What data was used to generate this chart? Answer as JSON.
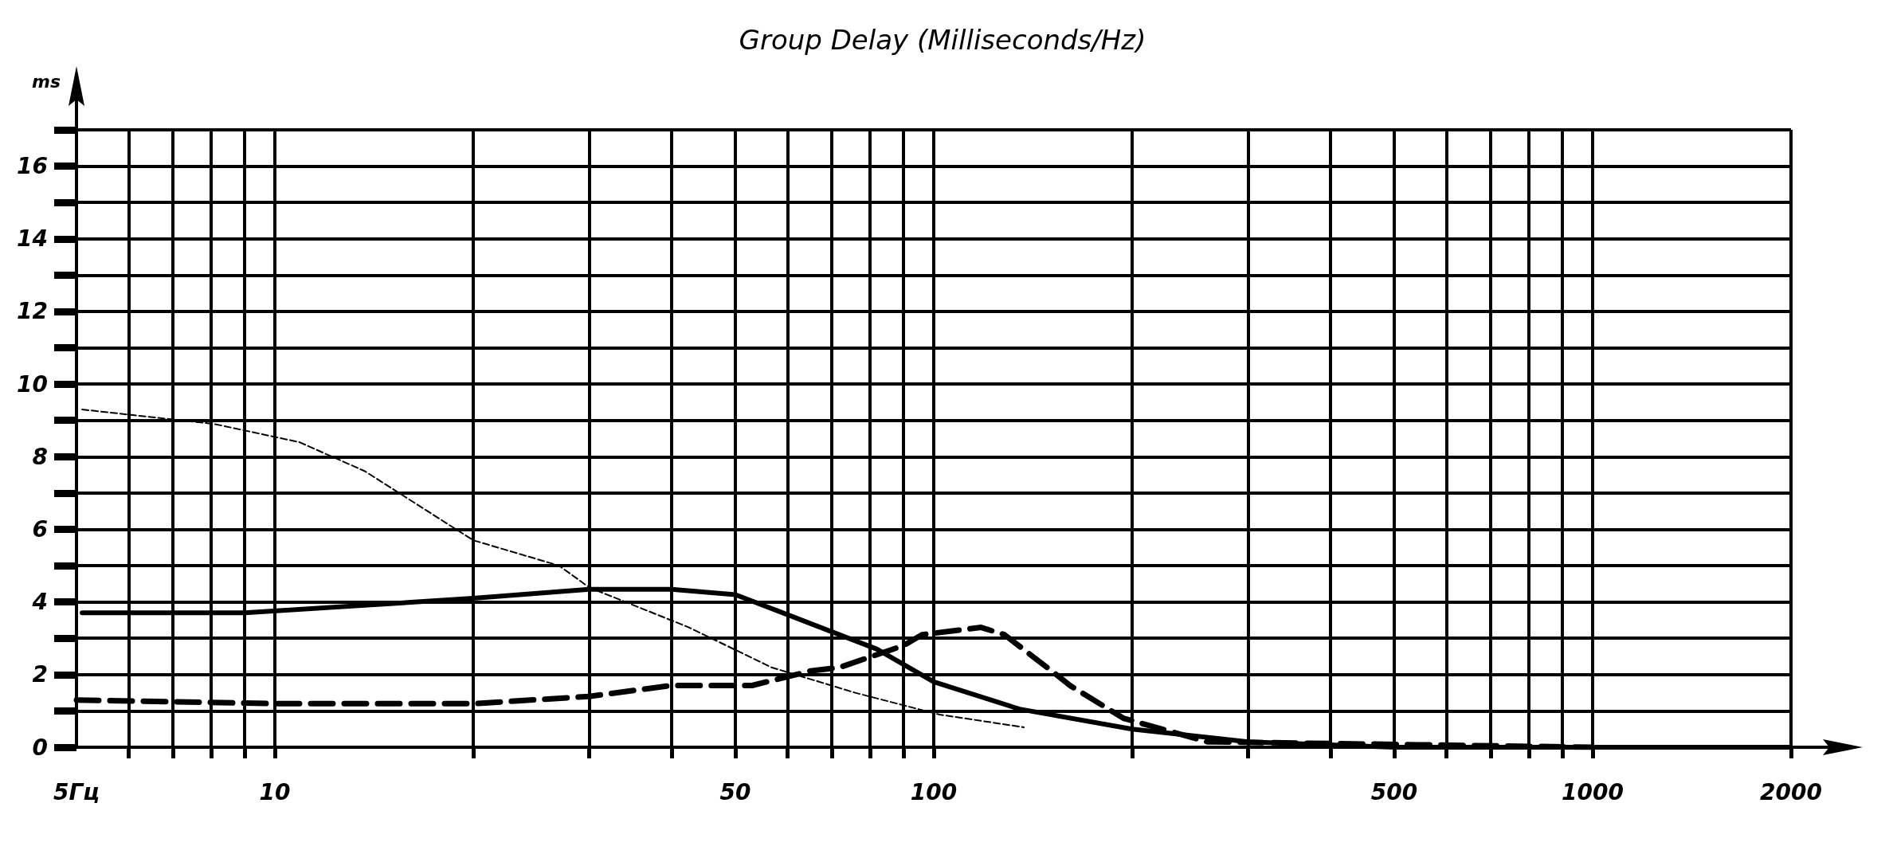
{
  "chart_data": {
    "type": "line",
    "title": "Group Delay (Milliseconds/Hz)",
    "ylabel": "ms",
    "log": "x",
    "xlim": [
      5,
      2000
    ],
    "ylim": [
      0,
      17
    ],
    "xticks": [
      {
        "value": 5,
        "label": "5Гц"
      },
      {
        "value": 6,
        "label": null
      },
      {
        "value": 7,
        "label": null
      },
      {
        "value": 8,
        "label": null
      },
      {
        "value": 9,
        "label": null
      },
      10,
      {
        "value": 20,
        "label": null
      },
      {
        "value": 30,
        "label": null
      },
      {
        "value": 40,
        "label": null
      },
      50,
      {
        "value": 60,
        "label": null
      },
      {
        "value": 70,
        "label": null
      },
      {
        "value": 80,
        "label": null
      },
      {
        "value": 90,
        "label": null
      },
      100,
      {
        "value": 200,
        "label": null
      },
      {
        "value": 300,
        "label": null
      },
      {
        "value": 400,
        "label": null
      },
      500,
      {
        "value": 600,
        "label": null
      },
      {
        "value": 700,
        "label": null
      },
      {
        "value": 800,
        "label": null
      },
      {
        "value": 900,
        "label": null
      },
      1000,
      2000
    ],
    "yticks": [
      0,
      {
        "value": 1,
        "label": null
      },
      2,
      {
        "value": 3,
        "label": null
      },
      4,
      {
        "value": 5,
        "label": null
      },
      6,
      {
        "value": 7,
        "label": null
      },
      8,
      {
        "value": 9,
        "label": null
      },
      10,
      {
        "value": 11,
        "label": null
      },
      12,
      {
        "value": 13,
        "label": null
      },
      14,
      {
        "value": 15,
        "label": null
      },
      16,
      {
        "value": 17,
        "label": null
      }
    ],
    "grid": true,
    "marker": "none",
    "series": [
      {
        "color": "#000000",
        "line_style": "dashed",
        "x": [
          5.1,
          8.1,
          10.9,
          13.7,
          20,
          27,
          30,
          42.5,
          56.7,
          76,
          102,
          137
        ],
        "values": [
          9.3,
          8.9,
          8.4,
          7.6,
          5.7,
          5.0,
          4.4,
          3.3,
          2.2,
          1.5,
          0.9,
          0.55
        ]
      },
      {
        "color": "#000000",
        "line_style": "solid",
        "x": [
          5.1,
          9,
          20,
          30,
          40,
          50,
          61,
          82,
          100,
          135,
          200,
          300,
          500,
          2000
        ],
        "values": [
          3.7,
          3.7,
          4.1,
          4.35,
          4.35,
          4.2,
          3.6,
          2.7,
          1.8,
          1.05,
          0.5,
          0.15,
          0,
          0
        ]
      },
      {
        "color": "#000000",
        "line_style": "dashed",
        "x": [
          5,
          10,
          20,
          30,
          40,
          53,
          65,
          72,
          90,
          96,
          118,
          128,
          151,
          161,
          194,
          212,
          260,
          1000
        ],
        "values": [
          1.3,
          1.2,
          1.2,
          1.4,
          1.7,
          1.7,
          2.1,
          2.2,
          2.8,
          3.1,
          3.3,
          3.1,
          2.1,
          1.7,
          0.8,
          0.6,
          0.15,
          0
        ]
      }
    ]
  }
}
